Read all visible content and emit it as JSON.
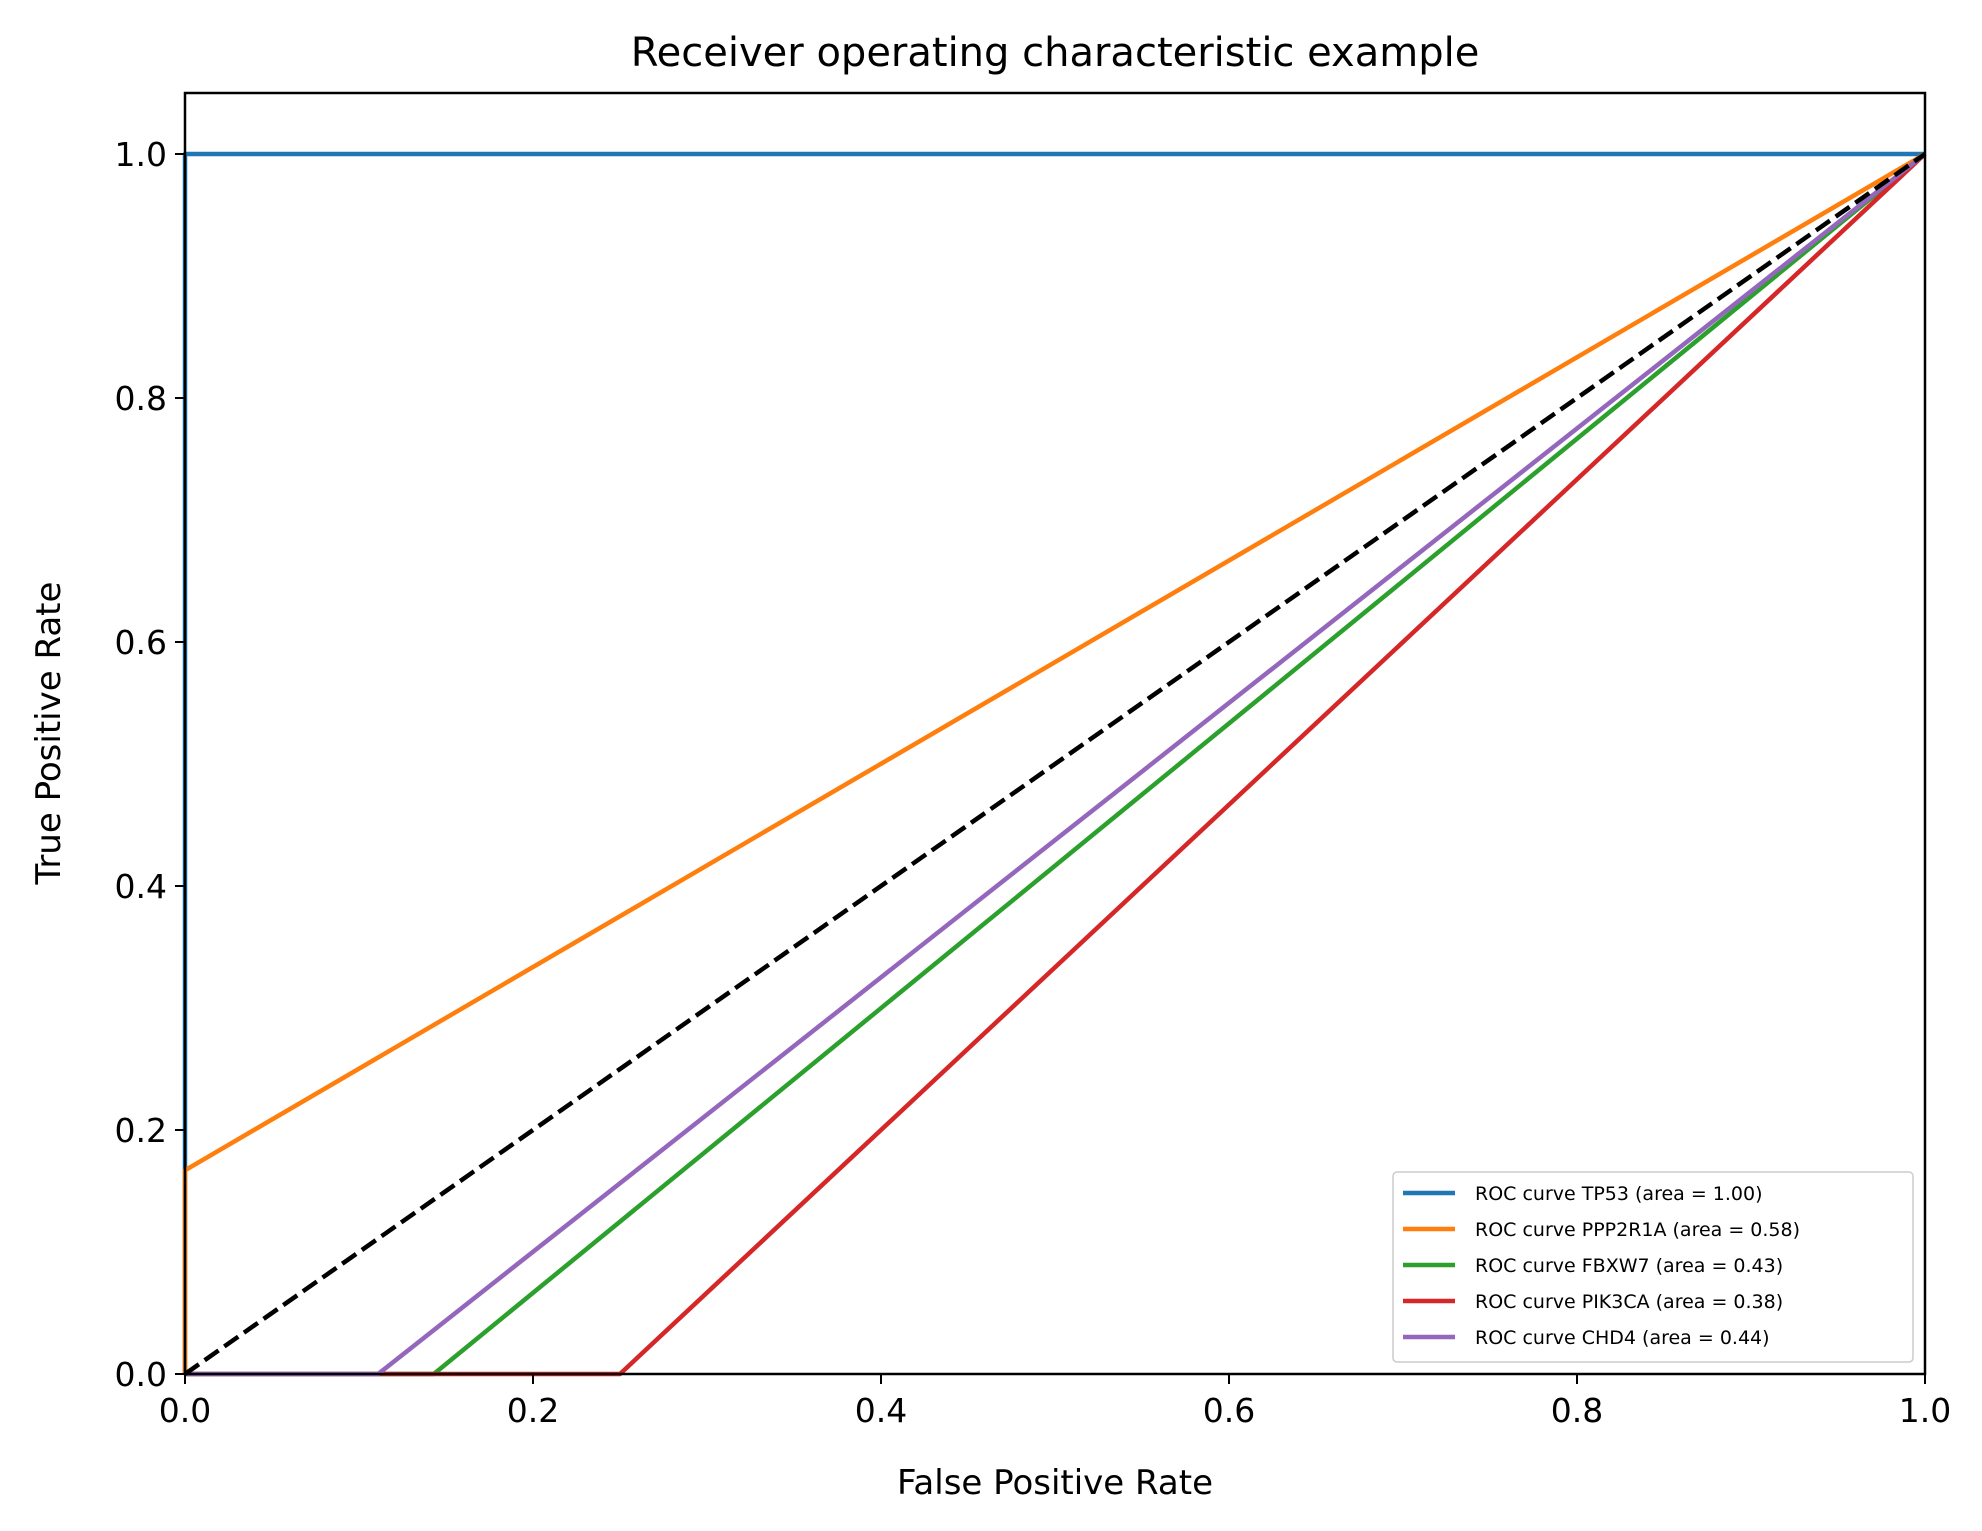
{
  "chart_data": {
    "type": "line",
    "title": "Receiver operating characteristic example",
    "xlabel": "False Positive Rate",
    "ylabel": "True Positive Rate",
    "xlim": [
      0.0,
      1.0
    ],
    "ylim": [
      0.0,
      1.05
    ],
    "x_ticks": [
      "0.0",
      "0.2",
      "0.4",
      "0.6",
      "0.8",
      "1.0"
    ],
    "y_ticks": [
      "0.0",
      "0.2",
      "0.4",
      "0.6",
      "0.8",
      "1.0"
    ],
    "grid": false,
    "legend_position": "lower right",
    "series": [
      {
        "name": "ROC curve TP53 (area = 1.00)",
        "color": "#1f77b4",
        "dashed": false,
        "x": [
          0.0,
          0.0,
          1.0
        ],
        "y": [
          0.0,
          1.0,
          1.0
        ]
      },
      {
        "name": "ROC curve PPP2R1A (area = 0.58)",
        "color": "#ff7f0e",
        "dashed": false,
        "x": [
          0.0,
          0.0,
          1.0
        ],
        "y": [
          0.0,
          0.167,
          1.0
        ]
      },
      {
        "name": "ROC curve FBXW7 (area = 0.43)",
        "color": "#2ca02c",
        "dashed": false,
        "x": [
          0.0,
          0.143,
          1.0
        ],
        "y": [
          0.0,
          0.0,
          1.0
        ]
      },
      {
        "name": "ROC curve PIK3CA (area = 0.38)",
        "color": "#d62728",
        "dashed": false,
        "x": [
          0.0,
          0.25,
          1.0
        ],
        "y": [
          0.0,
          0.0,
          1.0
        ]
      },
      {
        "name": "ROC curve CHD4 (area = 0.44)",
        "color": "#9467bd",
        "dashed": false,
        "x": [
          0.0,
          0.111,
          1.0
        ],
        "y": [
          0.0,
          0.0,
          1.0
        ]
      }
    ],
    "reference_line": {
      "color": "#000000",
      "dashed": true,
      "x": [
        0.0,
        1.0
      ],
      "y": [
        0.0,
        1.0
      ]
    }
  }
}
